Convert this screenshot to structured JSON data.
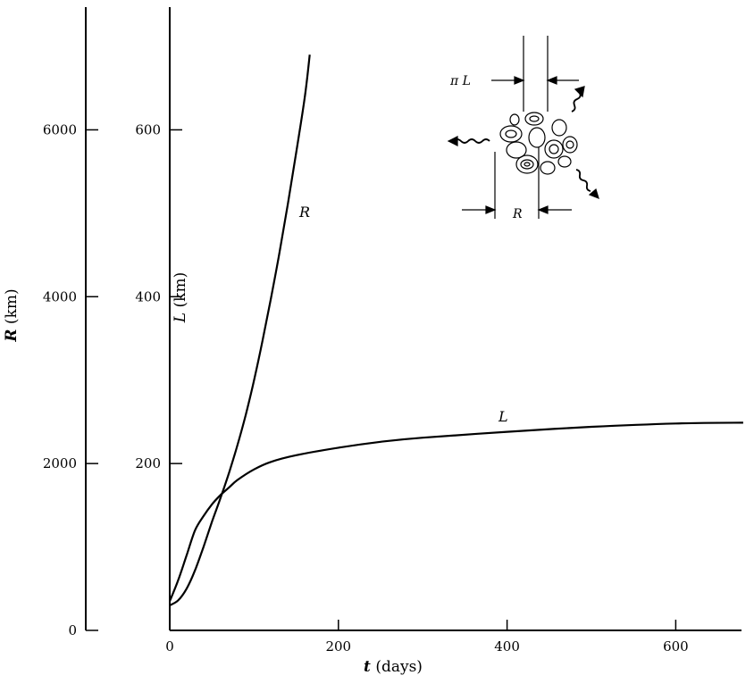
{
  "chart_data": {
    "type": "line",
    "x_axis": {
      "label_symbol": "t",
      "label_unit": "(days)",
      "range": [
        0,
        680
      ],
      "ticks": [
        0,
        200,
        400,
        600
      ],
      "tick_labels": [
        "0",
        "200",
        "400",
        "600"
      ]
    },
    "y_axis_outer": {
      "label_symbol": "R",
      "label_unit": "(km)",
      "range": [
        0,
        7000
      ],
      "ticks": [
        0,
        2000,
        4000,
        6000
      ],
      "tick_labels": [
        "0",
        "2000",
        "4000",
        "6000"
      ]
    },
    "y_axis_inner": {
      "label_symbol": "L",
      "label_unit": "(km)",
      "range": [
        0,
        700
      ],
      "ticks": [
        200,
        400,
        600
      ],
      "tick_labels": [
        "200",
        "400",
        "600"
      ]
    },
    "series": [
      {
        "name": "R",
        "axis": "outer",
        "x": [
          0,
          10,
          20,
          30,
          40,
          50,
          60,
          70,
          80,
          90,
          100,
          110,
          120,
          130,
          140,
          150,
          160,
          166
        ],
        "y": [
          300,
          360,
          500,
          720,
          1000,
          1300,
          1580,
          1880,
          2210,
          2580,
          3000,
          3470,
          3980,
          4520,
          5110,
          5730,
          6380,
          6900
        ]
      },
      {
        "name": "L",
        "axis": "inner",
        "x": [
          0,
          10,
          20,
          30,
          40,
          50,
          60,
          70,
          80,
          100,
          120,
          150,
          200,
          250,
          300,
          400,
          500,
          600,
          680
        ],
        "y": [
          35,
          60,
          90,
          120,
          137,
          151,
          162,
          171,
          180,
          193,
          202,
          210,
          219,
          226,
          231,
          238,
          244,
          248,
          249
        ]
      }
    ],
    "curve_labels": [
      "R",
      "L"
    ],
    "inset": {
      "label_top": "π L",
      "label_bottom": "R"
    }
  }
}
